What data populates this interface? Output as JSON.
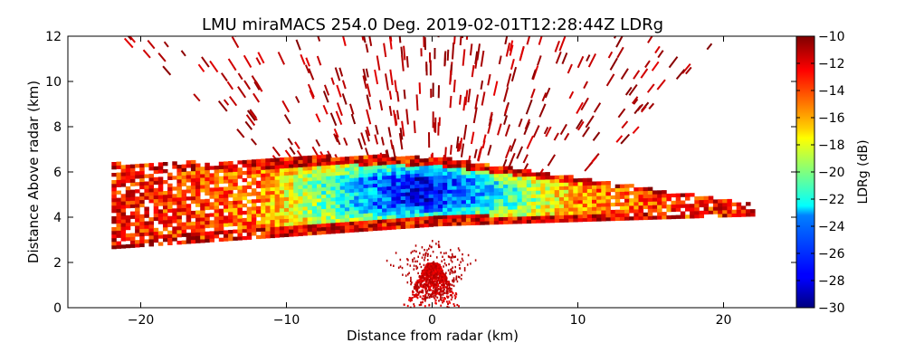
{
  "chart_data": {
    "type": "heatmap",
    "title": "LMU miraMACS 254.0 Deg. 2019-02-01T12:28:44Z  LDRg",
    "xlabel": "Distance from radar (km)",
    "ylabel": "Distance Above radar  (km)",
    "xlim": [
      -25,
      25
    ],
    "ylim": [
      0,
      12
    ],
    "x_ticks": [
      -20,
      -10,
      0,
      10,
      20
    ],
    "x_tick_labels": [
      "−20",
      "−10",
      "0",
      "10",
      "20"
    ],
    "y_ticks": [
      0,
      2,
      4,
      6,
      8,
      10,
      12
    ],
    "y_tick_labels": [
      "0",
      "2",
      "4",
      "6",
      "8",
      "10",
      "12"
    ],
    "grid": false,
    "colorbar": {
      "label": "LDRg (dB)",
      "colormap": "jet",
      "range": [
        -30,
        -10
      ],
      "ticks": [
        -10,
        -12,
        -14,
        -16,
        -18,
        -20,
        -22,
        -24,
        -26,
        -28,
        -30
      ],
      "tick_labels": [
        "−10",
        "−12",
        "−14",
        "−16",
        "−18",
        "−20",
        "−22",
        "−24",
        "−26",
        "−28",
        "−30"
      ]
    },
    "features": [
      {
        "name": "cloud-layer",
        "x_range": [
          -22,
          22
        ],
        "height_range": [
          2.6,
          6.6
        ],
        "core_value_db": -28,
        "edge_value_db": -12
      },
      {
        "name": "near-radar-echo",
        "x_range": [
          -2,
          2
        ],
        "height_range": [
          0,
          2
        ],
        "value_db": -11
      },
      {
        "name": "background-speckle",
        "x_range": [
          -22,
          22
        ],
        "height_range": [
          0,
          12
        ],
        "value_db": -10
      }
    ]
  }
}
